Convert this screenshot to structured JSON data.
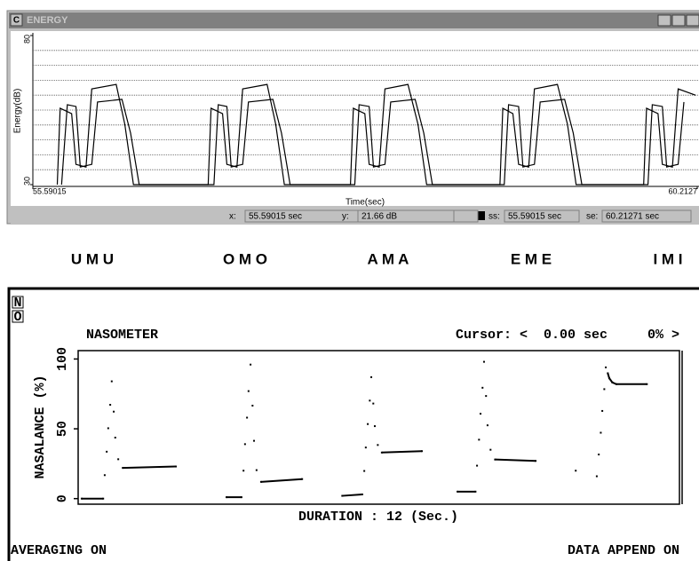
{
  "window": {
    "icon": "C",
    "title": "ENERGY"
  },
  "status": [
    {
      "label": "x:",
      "value": "55.59015 sec"
    },
    {
      "label": "y:",
      "value": "21.66 dB"
    },
    {
      "label": "ss:",
      "value": "55.59015 sec"
    },
    {
      "label": "se:",
      "value": "60.21271 sec"
    }
  ],
  "syllables": [
    "U M U",
    "O M O",
    "A M A",
    "E M E",
    "I M I"
  ],
  "nasometer": {
    "buttons": [
      "N",
      "O"
    ],
    "cursor": "Cursor: <  0.00 sec     0% >",
    "footer_left": "AVERAGING ON",
    "footer_right": "DATA APPEND ON"
  },
  "chart_data": [
    {
      "type": "line",
      "y_label": "Energy(dB)",
      "x_label": "Time(sec)",
      "xlim": [
        55.59015,
        60.2127
      ],
      "xticks": [
        55.59015,
        60.2127
      ],
      "ylim": [
        30,
        80
      ],
      "yticks": [
        30,
        80
      ],
      "ygrid": [
        35,
        40,
        45,
        50,
        55,
        60,
        65,
        70,
        75
      ],
      "series": [
        {
          "color": "#000000",
          "x": [
            55.76,
            55.78,
            55.86,
            55.89,
            55.96,
            56.0,
            56.17,
            56.23,
            56.29,
            56.81,
            56.83,
            56.91,
            56.94,
            57.01,
            57.05,
            57.22,
            57.28,
            57.34,
            57.8,
            57.82,
            57.9,
            57.93,
            58.0,
            58.04,
            58.2,
            58.27,
            58.33,
            58.84,
            58.86,
            58.93,
            58.97,
            59.04,
            59.08,
            59.24,
            59.31,
            59.37,
            59.84,
            59.86,
            59.94,
            59.97,
            60.04,
            60.08,
            60.2
          ],
          "values": [
            30,
            55.6,
            53.8,
            36.8,
            35.9,
            62.1,
            63.6,
            50.2,
            30,
            30,
            55.6,
            53.8,
            36.8,
            35.9,
            62.1,
            63.6,
            50.2,
            30,
            30,
            55.6,
            53.8,
            36.8,
            35.9,
            62.1,
            63.6,
            50.2,
            30,
            30,
            55.6,
            53.8,
            36.8,
            35.9,
            62.1,
            63.6,
            50.2,
            30,
            30,
            55.6,
            53.8,
            36.8,
            35.9,
            62.1,
            60
          ]
        },
        {
          "color": "#000000",
          "x": [
            55.79,
            55.83,
            55.89,
            55.92,
            56.0,
            56.04,
            56.21,
            56.27,
            56.33,
            56.85,
            56.88,
            56.94,
            56.97,
            57.05,
            57.09,
            57.26,
            57.32,
            57.38,
            57.83,
            57.86,
            57.93,
            57.96,
            58.04,
            58.08,
            58.25,
            58.31,
            58.37,
            58.87,
            58.9,
            58.97,
            59.0,
            59.08,
            59.12,
            59.29,
            59.35,
            59.41,
            59.87,
            59.9,
            59.97,
            60.0,
            60.08,
            60.12
          ],
          "values": [
            30,
            56.8,
            56.2,
            35.9,
            36.8,
            57.7,
            58.6,
            47.3,
            30,
            30,
            56.8,
            56.2,
            35.9,
            36.8,
            57.7,
            58.6,
            47.3,
            30,
            30,
            56.8,
            56.2,
            35.9,
            36.8,
            57.7,
            58.6,
            47.3,
            30,
            30,
            56.8,
            56.2,
            35.9,
            36.8,
            57.7,
            58.6,
            47.3,
            30,
            30,
            56.8,
            56.2,
            35.9,
            36.8,
            57.7
          ]
        }
      ]
    },
    {
      "type": "line",
      "title": "NASOMETER",
      "y_label": "NASALANCE (%)",
      "x_label": "DURATION : 12 (Sec.)",
      "markers": true,
      "xlim": [
        0,
        12
      ],
      "ylim": [
        -4,
        106
      ],
      "yticks": [
        0,
        50,
        100
      ],
      "series": [
        {
          "color": "#000000",
          "x": [
            0.07,
            0.5,
            0.53,
            0.57,
            0.6,
            0.64,
            0.67,
            0.71,
            0.74,
            0.8,
            0.89,
            1.95,
            2.5,
            2.96,
            3.26,
            3.3,
            3.33,
            3.37,
            3.4,
            3.44,
            3.48,
            3.51,
            3.56,
            3.65,
            4.47,
            5.0,
            5.27,
            5.67,
            5.71,
            5.74,
            5.78,
            5.82,
            5.85,
            5.89,
            5.92,
            5.98,
            6.06,
            6.86,
            7.2,
            7.57,
            7.93,
            7.96,
            8.0,
            8.03,
            8.07,
            8.1,
            8.14,
            8.17,
            8.23,
            8.32,
            9.13,
            9.5,
            9.93,
            10.35,
            10.39,
            10.43,
            10.46,
            10.5,
            10.53,
            10.57,
            10.6,
            10.66,
            10.74,
            11.35
          ],
          "values": [
            0,
            0,
            16.8,
            33.6,
            50.4,
            67.2,
            84,
            62.3,
            43.7,
            28.2,
            22,
            23,
            null,
            1,
            1,
            20,
            39,
            58,
            77,
            96,
            66.6,
            41.4,
            20.4,
            12,
            14,
            null,
            2,
            3,
            19.8,
            36.6,
            53.4,
            70.2,
            87,
            68.1,
            51.9,
            38.4,
            33,
            34,
            null,
            5,
            5,
            23.6,
            42.2,
            60.8,
            79.4,
            98,
            73.5,
            52.5,
            35,
            28,
            27,
            null,
            20,
            16,
            31.6,
            47.2,
            62.8,
            78.4,
            94,
            89.8,
            86.2,
            83.2,
            82,
            82
          ]
        }
      ]
    }
  ]
}
